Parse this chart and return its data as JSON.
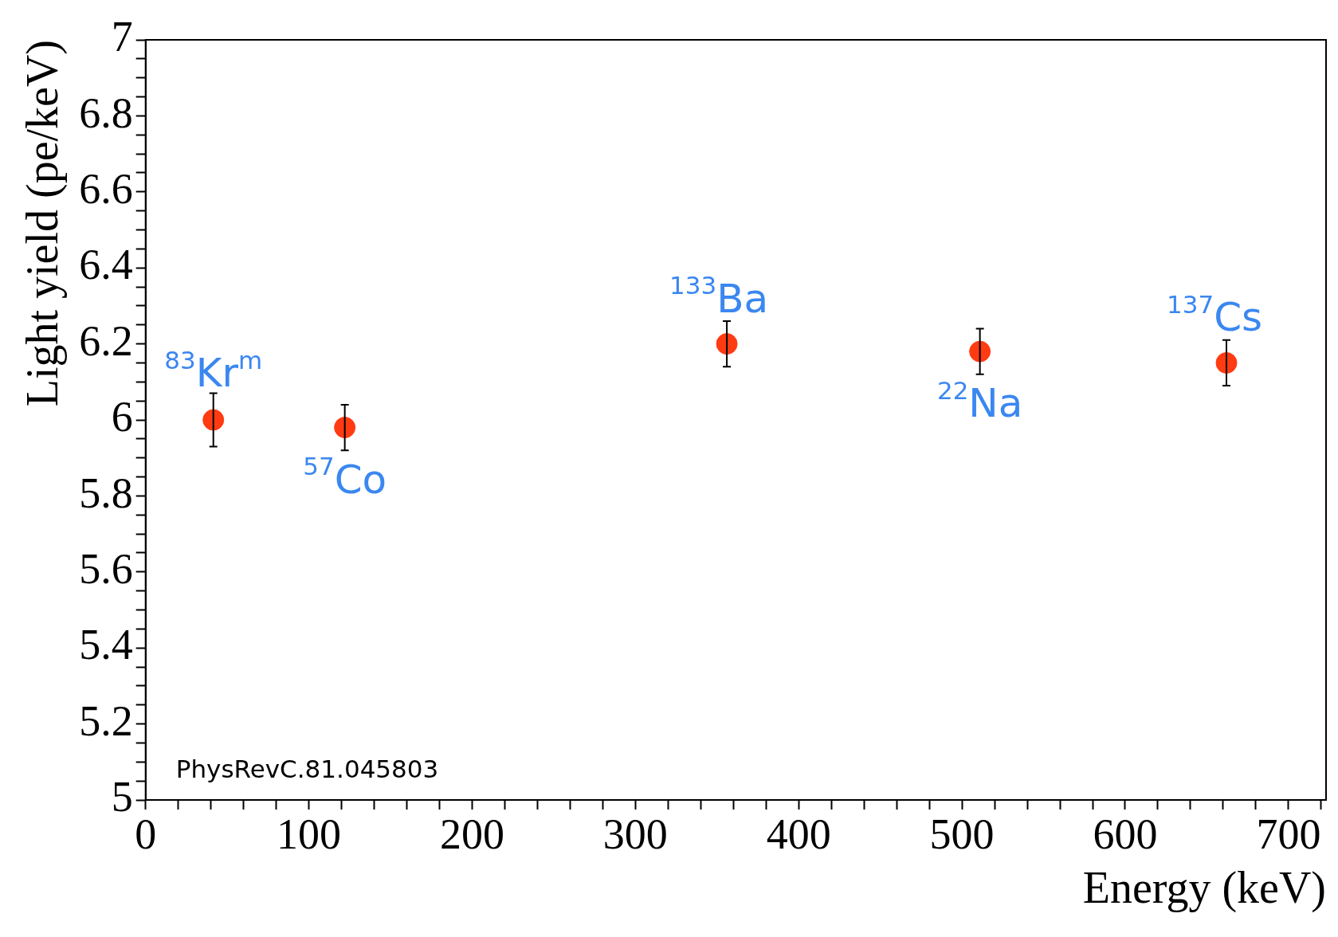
{
  "chart_data": {
    "type": "scatter",
    "xlabel": "Energy (keV)",
    "ylabel": "Light yield (pe/keV)",
    "x": [
      41.5,
      122,
      356,
      511,
      662
    ],
    "series": [
      {
        "color": "#ff3b12",
        "values": [
          6.0,
          5.98,
          6.2,
          6.18,
          6.15
        ],
        "errors": [
          0.07,
          0.06,
          0.06,
          0.06,
          0.06
        ]
      }
    ],
    "xlim": [
      0,
      723
    ],
    "xticks": [
      0,
      {
        "value": 20,
        "label": null
      },
      {
        "value": 40,
        "label": null
      },
      {
        "value": 60,
        "label": null
      },
      {
        "value": 80,
        "label": null
      },
      100,
      {
        "value": 120,
        "label": null
      },
      {
        "value": 140,
        "label": null
      },
      {
        "value": 160,
        "label": null
      },
      {
        "value": 180,
        "label": null
      },
      200,
      {
        "value": 220,
        "label": null
      },
      {
        "value": 240,
        "label": null
      },
      {
        "value": 260,
        "label": null
      },
      {
        "value": 280,
        "label": null
      },
      300,
      {
        "value": 320,
        "label": null
      },
      {
        "value": 340,
        "label": null
      },
      {
        "value": 360,
        "label": null
      },
      {
        "value": 380,
        "label": null
      },
      400,
      {
        "value": 420,
        "label": null
      },
      {
        "value": 440,
        "label": null
      },
      {
        "value": 460,
        "label": null
      },
      {
        "value": 480,
        "label": null
      },
      500,
      {
        "value": 520,
        "label": null
      },
      {
        "value": 540,
        "label": null
      },
      {
        "value": 560,
        "label": null
      },
      {
        "value": 580,
        "label": null
      },
      600,
      {
        "value": 620,
        "label": null
      },
      {
        "value": 640,
        "label": null
      },
      {
        "value": 660,
        "label": null
      },
      {
        "value": 680,
        "label": null
      },
      700,
      {
        "value": 720,
        "label": null
      }
    ],
    "ylim": [
      5,
      7
    ],
    "yticks": [
      5,
      {
        "value": 5.05,
        "label": null
      },
      {
        "value": 5.1,
        "label": null
      },
      {
        "value": 5.15,
        "label": null
      },
      5.2,
      {
        "value": 5.25,
        "label": null
      },
      {
        "value": 5.3,
        "label": null
      },
      {
        "value": 5.35,
        "label": null
      },
      5.4,
      {
        "value": 5.45,
        "label": null
      },
      {
        "value": 5.5,
        "label": null
      },
      {
        "value": 5.55,
        "label": null
      },
      5.6,
      {
        "value": 5.65,
        "label": null
      },
      {
        "value": 5.7,
        "label": null
      },
      {
        "value": 5.75,
        "label": null
      },
      5.8,
      {
        "value": 5.85,
        "label": null
      },
      {
        "value": 5.9,
        "label": null
      },
      {
        "value": 5.95,
        "label": null
      },
      6,
      {
        "value": 6.05,
        "label": null
      },
      {
        "value": 6.1,
        "label": null
      },
      {
        "value": 6.15,
        "label": null
      },
      6.2,
      {
        "value": 6.25,
        "label": null
      },
      {
        "value": 6.3,
        "label": null
      },
      {
        "value": 6.35,
        "label": null
      },
      6.4,
      {
        "value": 6.45,
        "label": null
      },
      {
        "value": 6.5,
        "label": null
      },
      {
        "value": 6.55,
        "label": null
      },
      6.6,
      {
        "value": 6.65,
        "label": null
      },
      {
        "value": 6.7,
        "label": null
      },
      {
        "value": 6.75,
        "label": null
      },
      6.8,
      {
        "value": 6.85,
        "label": null
      },
      {
        "value": 6.9,
        "label": null
      },
      {
        "value": 6.95,
        "label": null
      },
      7
    ],
    "marker": "circle",
    "grid": false,
    "legend": false,
    "annotations": [
      {
        "text": "$^{83}$Kr$^{m}$",
        "x": 41.5,
        "y": 6.0
      },
      {
        "text": "$^{57}$Co",
        "x": 122,
        "y": 5.98
      },
      {
        "text": "$^{133}$Ba",
        "x": 356,
        "y": 6.2
      },
      {
        "text": "$^{22}$Na",
        "x": 511,
        "y": 6.18
      },
      {
        "text": "$^{137}$Cs",
        "x": 662,
        "y": 6.15
      },
      "PhysRevC.81.045803"
    ]
  }
}
